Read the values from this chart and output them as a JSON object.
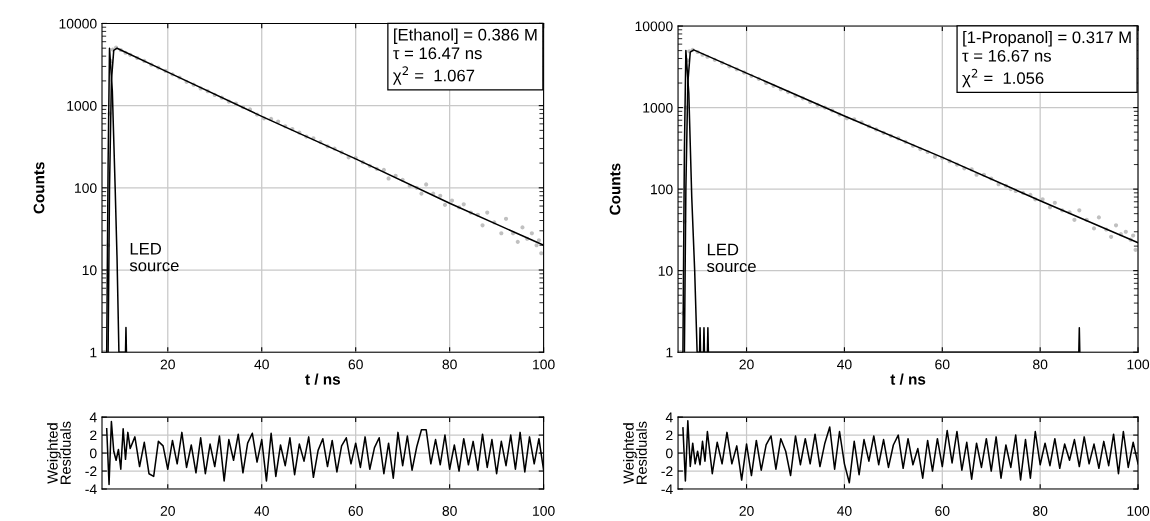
{
  "chart_data": [
    {
      "type": "line",
      "log": true,
      "xlabel": "t / ns",
      "ylabel": "Counts",
      "xlim": [
        6,
        100
      ],
      "xticks": [
        20,
        40,
        60,
        80,
        100
      ],
      "ylim": [
        1,
        10000
      ],
      "yticks": [
        1,
        10,
        100,
        1000,
        10000
      ],
      "grid": true,
      "annotations": [
        "[Ethanol] = 0.386 M",
        "τ = 16.47 ns",
        "χ$^{2}$ =  1.067",
        "LED\nsource"
      ],
      "series": [
        {
          "type": "scatter",
          "marker": "circle",
          "color": "#c0c0c0",
          "x": [
            6.0,
            6.5,
            7.0,
            7.3,
            7.6,
            7.9,
            8.3,
            9,
            10,
            11,
            12,
            13.5,
            15,
            16.5,
            18,
            19.5,
            21,
            22.5,
            24,
            25.5,
            27,
            28.5,
            30,
            31.5,
            33,
            34.5,
            36,
            37.5,
            39,
            40.5,
            42,
            43.5,
            45,
            46.5,
            48,
            49.5,
            51,
            52.5,
            54,
            55.5,
            57,
            58.5,
            60,
            61.5,
            63,
            64.5,
            66,
            67,
            68.5,
            70,
            71.5,
            73,
            74,
            75,
            76.5,
            78,
            79,
            80.5,
            82,
            83,
            84.5,
            86,
            87,
            88,
            89.5,
            91,
            92,
            93.5,
            94.5,
            95.5,
            96.5,
            97.5,
            98.5,
            99,
            99.5
          ],
          "values": [
            1,
            1,
            1,
            20,
            800,
            3500,
            4800,
            5100,
            4750,
            4400,
            4150,
            3800,
            3500,
            3150,
            2900,
            2650,
            2400,
            2200,
            1950,
            1800,
            1620,
            1500,
            1350,
            1250,
            1120,
            1060,
            960,
            900,
            780,
            700,
            690,
            640,
            560,
            520,
            470,
            420,
            400,
            360,
            320,
            300,
            270,
            235,
            230,
            205,
            185,
            170,
            165,
            130,
            140,
            125,
            105,
            100,
            85,
            110,
            85,
            80,
            62,
            70,
            58,
            63,
            50,
            47,
            35,
            50,
            38,
            28,
            42,
            28,
            22,
            33,
            24,
            28,
            20,
            23,
            16
          ]
        },
        {
          "type": "line",
          "color": "#000000",
          "x": [
            7.3,
            7.6,
            8.0,
            8.5,
            9.2,
            20,
            40,
            60,
            80,
            100
          ],
          "values": [
            1,
            100,
            2000,
            4700,
            5000,
            2560,
            740,
            225,
            65,
            20
          ]
        },
        {
          "type": "line",
          "color": "#000000",
          "x": [
            7.0,
            7.3,
            7.6,
            8.2,
            8.8,
            9.2,
            9.6,
            11.0,
            11.1,
            11.2
          ],
          "values": [
            1,
            200,
            5000,
            1500,
            100,
            14,
            1,
            1,
            2,
            1
          ]
        }
      ]
    },
    {
      "type": "line",
      "log": true,
      "xlabel": "t / ns",
      "ylabel": "Counts",
      "xlim": [
        6,
        100
      ],
      "xticks": [
        20,
        40,
        60,
        80,
        100
      ],
      "ylim": [
        1,
        10000
      ],
      "yticks": [
        1,
        10,
        100,
        1000,
        10000
      ],
      "grid": true,
      "annotations": [
        "[1-Propanol] = 0.317 M",
        "τ = 16.67 ns",
        "χ$^{2}$ =  1.056",
        "LED\nsource"
      ],
      "series": [
        {
          "type": "scatter",
          "marker": "circle",
          "color": "#c0c0c0",
          "x": [
            6.0,
            6.5,
            7.0,
            7.3,
            7.6,
            7.9,
            8.3,
            9,
            10,
            11,
            12,
            13.5,
            15,
            16.5,
            18,
            19.5,
            21,
            22.5,
            24,
            25.5,
            27,
            28.5,
            30,
            31.5,
            33,
            34.5,
            36,
            37.5,
            39,
            40.5,
            42,
            43.5,
            45,
            46.5,
            48,
            49.5,
            51,
            52.5,
            54,
            55.5,
            57,
            58.5,
            60,
            61.5,
            63,
            64.5,
            66,
            67,
            68.5,
            70,
            71.5,
            73,
            74,
            75,
            76.5,
            78,
            79,
            80.5,
            82,
            83,
            84.5,
            86,
            87,
            88,
            89.5,
            91,
            92,
            93.5,
            94.5,
            95.5,
            96.5,
            97.5,
            98.5,
            99,
            99.5
          ],
          "values": [
            1,
            1,
            3,
            40,
            1000,
            3800,
            4900,
            5100,
            4800,
            4450,
            4200,
            3850,
            3550,
            3200,
            2950,
            2700,
            2450,
            2250,
            2000,
            1850,
            1680,
            1550,
            1400,
            1300,
            1170,
            1080,
            1000,
            920,
            820,
            740,
            720,
            660,
            590,
            540,
            490,
            450,
            420,
            380,
            340,
            310,
            285,
            250,
            240,
            220,
            200,
            180,
            175,
            150,
            150,
            135,
            115,
            110,
            100,
            95,
            90,
            85,
            75,
            75,
            60,
            68,
            55,
            52,
            42,
            55,
            42,
            33,
            45,
            32,
            26,
            36,
            28,
            30,
            24,
            27,
            18
          ]
        },
        {
          "type": "line",
          "color": "#000000",
          "x": [
            7.3,
            7.6,
            8.0,
            8.5,
            9.2,
            20,
            40,
            60,
            80,
            100
          ],
          "values": [
            1,
            100,
            2000,
            4800,
            5100,
            2650,
            790,
            245,
            72,
            22
          ]
        },
        {
          "type": "line",
          "color": "#000000",
          "x": [
            7.0,
            7.3,
            7.6,
            8.2,
            8.8,
            9.4,
            9.9,
            10.4,
            10.5,
            10.6,
            11.2,
            11.3,
            11.4,
            12.0,
            12.1,
            12.2,
            87.9,
            88.0,
            88.1
          ],
          "values": [
            1,
            300,
            5000,
            1500,
            80,
            10,
            1,
            1,
            2,
            1,
            1,
            2,
            1,
            1,
            2,
            1,
            1,
            2,
            1
          ]
        }
      ]
    },
    {
      "type": "line",
      "ylabel": "Weighted\nResiduals",
      "xlim": [
        6,
        100
      ],
      "xticks": [
        20,
        40,
        60,
        80,
        100
      ],
      "ylim": [
        -4,
        4
      ],
      "yticks": [
        -4,
        -2,
        0,
        2,
        4
      ],
      "grid": true,
      "series": [
        {
          "color": "#000000",
          "x": [
            7.0,
            7.5,
            8.0,
            8.5,
            9,
            9.5,
            10,
            10.5,
            11,
            11.5,
            12,
            13,
            14,
            15,
            16,
            17,
            18,
            19,
            20,
            21,
            22,
            23,
            24,
            25,
            26,
            27,
            28,
            29,
            30,
            31,
            32,
            33,
            34,
            35,
            36,
            37,
            38,
            39,
            40,
            41,
            42,
            43,
            44,
            45,
            46,
            47,
            48,
            49,
            50,
            51,
            52,
            53,
            54,
            55,
            56,
            57,
            58,
            59,
            60,
            61,
            62,
            63,
            64,
            65,
            66,
            67,
            68,
            69,
            70,
            71,
            72,
            73,
            74,
            75,
            76,
            77,
            78,
            79,
            80,
            81,
            82,
            83,
            84,
            85,
            86,
            87,
            88,
            89,
            90,
            91,
            92,
            93,
            94,
            95,
            96,
            97,
            98,
            99,
            100
          ],
          "values": [
            2.7,
            -3.5,
            3.5,
            0.2,
            -0.8,
            0.4,
            -1.8,
            2.7,
            -0.7,
            2.3,
            0.5,
            1.8,
            -1.5,
            1.2,
            -2.3,
            -2.6,
            1.3,
            0.8,
            -1.8,
            1.4,
            -1.2,
            2.3,
            -1.6,
            0.9,
            -2.2,
            1.7,
            -2.3,
            1.0,
            -1.5,
            1.9,
            -3.1,
            1.5,
            -0.8,
            2.1,
            -2.2,
            1.1,
            2.2,
            -1.0,
            1.5,
            -3.1,
            2.2,
            -2.6,
            0.9,
            -1.4,
            1.7,
            -2.4,
            1.0,
            -0.9,
            1.8,
            -2.7,
            0.3,
            1.6,
            -1.5,
            1.4,
            -2.1,
            0.8,
            1.7,
            -1.2,
            1.1,
            -1.6,
            1.8,
            -1.8,
            0.6,
            1.7,
            -2.3,
            1.1,
            -2.8,
            2.3,
            -1.4,
            1.9,
            -1.9,
            0.7,
            2.6,
            2.6,
            -1.2,
            1.5,
            -1.3,
            2.0,
            -1.8,
            0.9,
            -2.0,
            1.6,
            -1.3,
            1.3,
            -1.9,
            2.1,
            -1.6,
            1.5,
            -2.3,
            1.3,
            -1.4,
            2.0,
            -1.8,
            2.3,
            -2.1,
            1.8,
            -1.2,
            1.6,
            -1.9
          ]
        }
      ]
    },
    {
      "type": "line",
      "ylabel": "Weighted\nResiduals",
      "xlim": [
        6,
        100
      ],
      "xticks": [
        20,
        40,
        60,
        80,
        100
      ],
      "ylim": [
        -4,
        4
      ],
      "yticks": [
        -4,
        -2,
        0,
        2,
        4
      ],
      "grid": true,
      "series": [
        {
          "color": "#000000",
          "x": [
            7.0,
            7.5,
            8.0,
            8.5,
            9,
            9.5,
            10,
            10.5,
            11,
            11.5,
            12,
            13,
            14,
            15,
            16,
            17,
            18,
            19,
            20,
            21,
            22,
            23,
            24,
            25,
            26,
            27,
            28,
            29,
            30,
            31,
            32,
            33,
            34,
            35,
            36,
            37,
            38,
            39,
            40,
            41,
            42,
            43,
            44,
            45,
            46,
            47,
            48,
            49,
            50,
            51,
            52,
            53,
            54,
            55,
            56,
            57,
            58,
            59,
            60,
            61,
            62,
            63,
            64,
            65,
            66,
            67,
            68,
            69,
            70,
            71,
            72,
            73,
            74,
            75,
            76,
            77,
            78,
            79,
            80,
            81,
            82,
            83,
            84,
            85,
            86,
            87,
            88,
            89,
            90,
            91,
            92,
            93,
            94,
            95,
            96,
            97,
            98,
            99,
            100
          ],
          "values": [
            2.8,
            -3.1,
            3.6,
            -1.5,
            1.1,
            -1.2,
            0.2,
            -1.3,
            1.3,
            -0.9,
            2.4,
            -2.3,
            1.2,
            -1.2,
            2.3,
            -1.2,
            0.8,
            -3.0,
            1.0,
            -2.5,
            1.4,
            -1.9,
            0.9,
            1.9,
            -1.8,
            1.6,
            0.2,
            -2.5,
            1.9,
            -1.3,
            1.6,
            -1.2,
            2.1,
            -1.5,
            1.1,
            2.9,
            -1.8,
            2.4,
            -1.2,
            -3.3,
            1.3,
            -2.4,
            1.5,
            -0.9,
            1.9,
            -1.3,
            1.5,
            -1.6,
            0.9,
            2.0,
            -1.7,
            1.6,
            -1.3,
            0.5,
            -2.8,
            1.4,
            -2.0,
            1.6,
            -1.5,
            2.5,
            -1.1,
            2.4,
            -1.9,
            1.2,
            -2.9,
            1.1,
            -1.6,
            1.6,
            -2.0,
            1.8,
            -2.8,
            0.9,
            -1.6,
            2.0,
            -3.0,
            1.5,
            -2.8,
            2.4,
            -1.3,
            1.1,
            -1.4,
            1.6,
            -1.7,
            1.0,
            -0.8,
            1.5,
            -1.5,
            1.8,
            -1.2,
            1.0,
            -1.7,
            1.3,
            -1.4,
            2.1,
            -2.3,
            2.4,
            -1.6,
            1.2,
            -1.2
          ]
        }
      ]
    }
  ]
}
